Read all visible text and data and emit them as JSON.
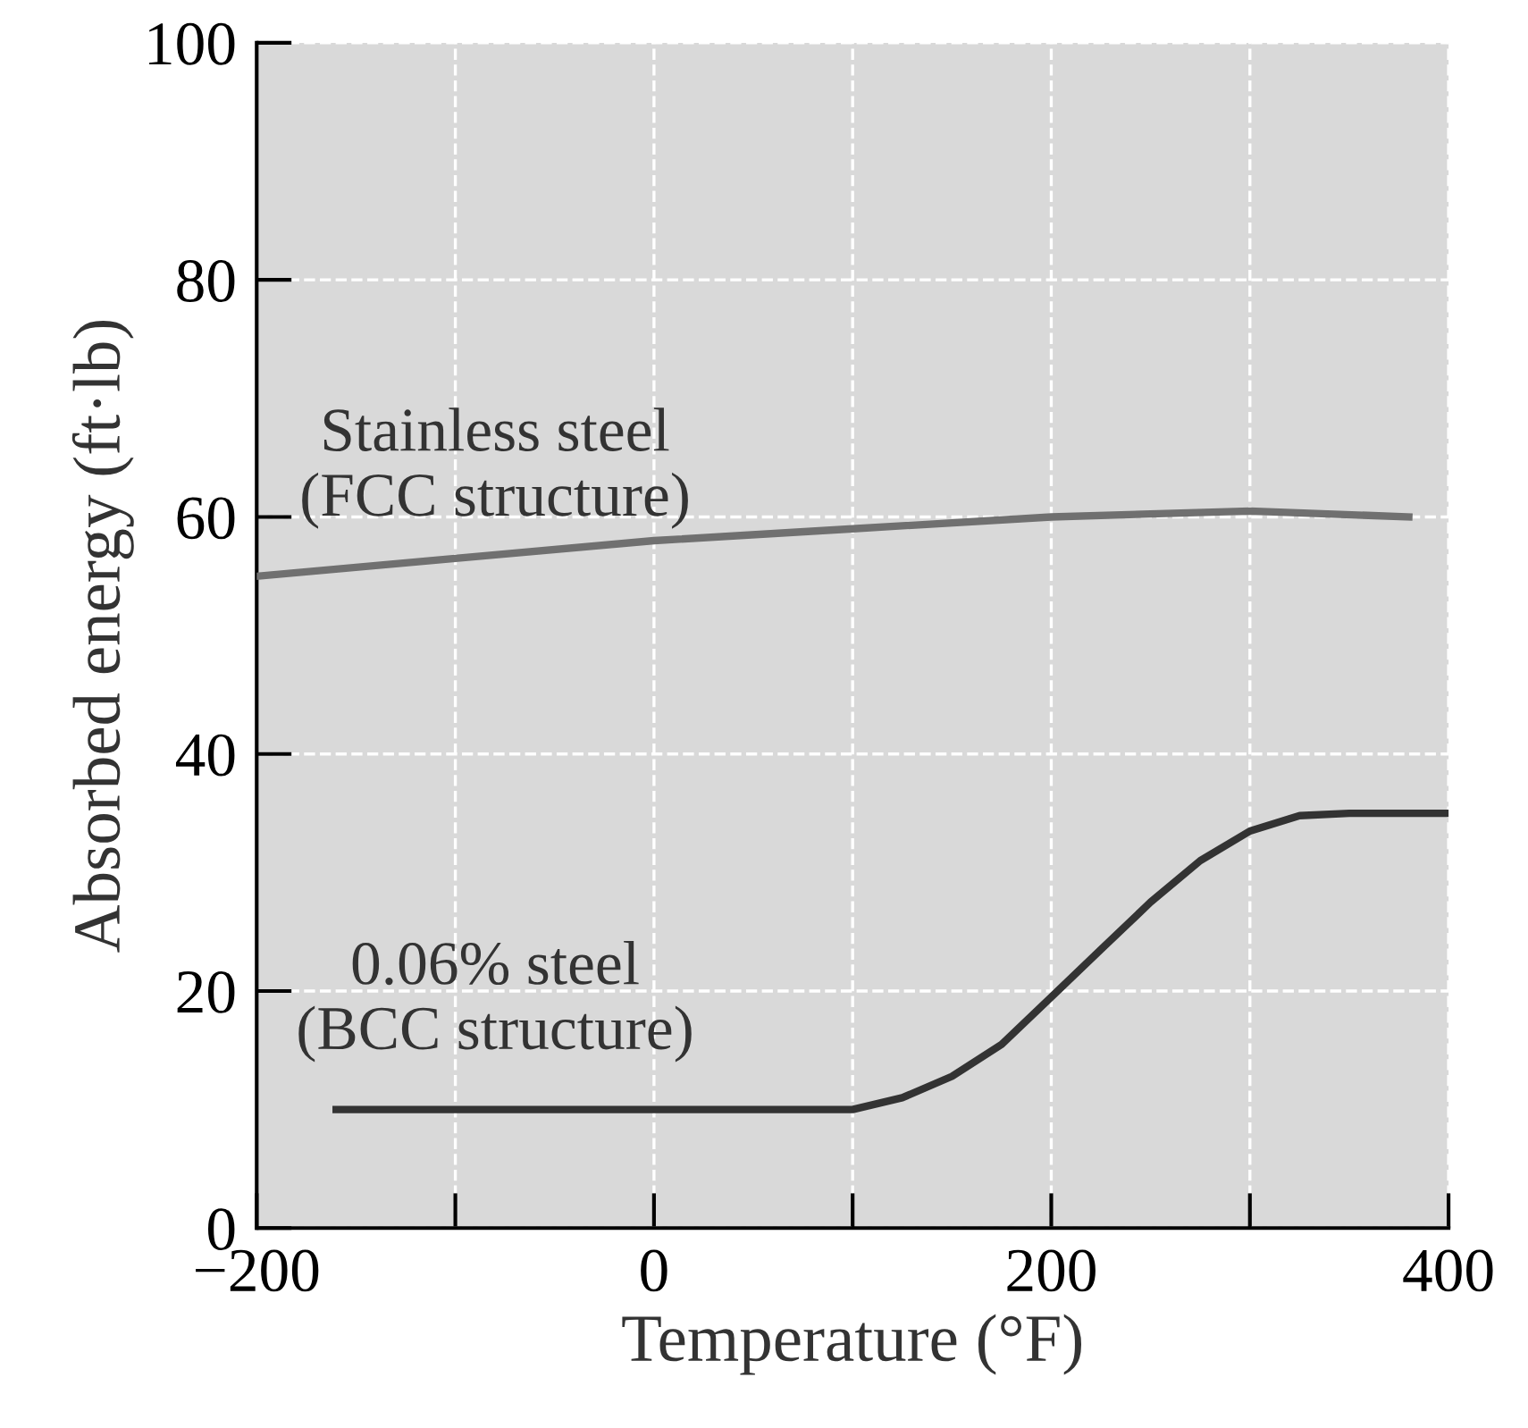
{
  "chart_data": {
    "type": "line",
    "xlabel": "Temperature (°F)",
    "ylabel": "Absorbed energy (ft·lb)",
    "xlim": [
      -200,
      400
    ],
    "ylim": [
      0,
      100
    ],
    "xticks": [
      -200,
      {
        "value": -100,
        "label": null
      },
      0,
      {
        "value": 100,
        "label": null
      },
      200,
      {
        "value": 300,
        "label": null
      },
      400
    ],
    "yticks": [
      0,
      20,
      40,
      60,
      80,
      100
    ],
    "grid": true,
    "legend": false,
    "marker": "none",
    "line_style": "solid",
    "series": [
      {
        "name": "Stainless steel\n(FCC structure)",
        "color": "#707070",
        "x": [
          -200,
          -100,
          0,
          100,
          200,
          300,
          380
        ],
        "values": [
          55,
          56.5,
          58,
          59,
          60,
          60.5,
          60
        ]
      },
      {
        "name": "0.06% steel\n(BCC structure)",
        "color": "#333333",
        "x": [
          -160,
          0,
          100,
          125,
          150,
          175,
          200,
          225,
          250,
          275,
          300,
          325,
          350,
          400
        ],
        "values": [
          10,
          10,
          10,
          11,
          12.8,
          15.5,
          19.5,
          23.5,
          27.5,
          31,
          33.5,
          34.8,
          35,
          35
        ]
      }
    ]
  }
}
